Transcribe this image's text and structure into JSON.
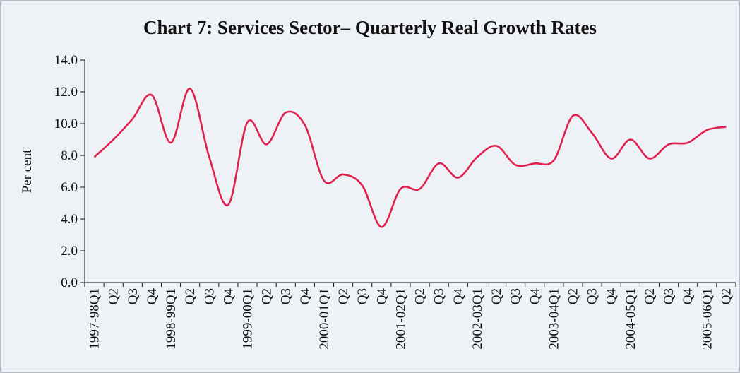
{
  "chart_data": {
    "type": "line",
    "title": "Chart 7: Services Sector– Quarterly Real Growth Rates",
    "ylabel": "Per cent",
    "xlabel": "",
    "ylim": [
      0,
      14
    ],
    "yticks": [
      "0.0",
      "2.0",
      "4.0",
      "6.0",
      "8.0",
      "10.0",
      "12.0",
      "14.0"
    ],
    "grid": false,
    "legend": "none",
    "line_color": "#e0214f",
    "categories": [
      "1997-98Q1",
      "Q2",
      "Q3",
      "Q4",
      "1998-99Q1",
      "Q2",
      "Q3",
      "Q4",
      "1999-00Q1",
      "Q2",
      "Q3",
      "Q4",
      "2000-01Q1",
      "Q2",
      "Q3",
      "Q4",
      "2001-02Q1",
      "Q2",
      "Q3",
      "Q4",
      "2002-03Q1",
      "Q2",
      "Q3",
      "Q4",
      "2003-04Q1",
      "Q2",
      "Q3",
      "Q4",
      "2004-05Q1",
      "Q2",
      "Q3",
      "Q4",
      "2005-06Q1",
      "Q2"
    ],
    "values": [
      7.9,
      9.0,
      10.3,
      11.8,
      8.8,
      12.2,
      7.9,
      4.9,
      10.1,
      8.7,
      10.7,
      9.9,
      6.4,
      6.8,
      6.1,
      3.5,
      5.9,
      5.9,
      7.5,
      6.6,
      7.9,
      8.6,
      7.4,
      7.5,
      7.7,
      10.5,
      9.4,
      7.8,
      9.0,
      7.8,
      8.7,
      8.8,
      9.6,
      9.8
    ]
  }
}
